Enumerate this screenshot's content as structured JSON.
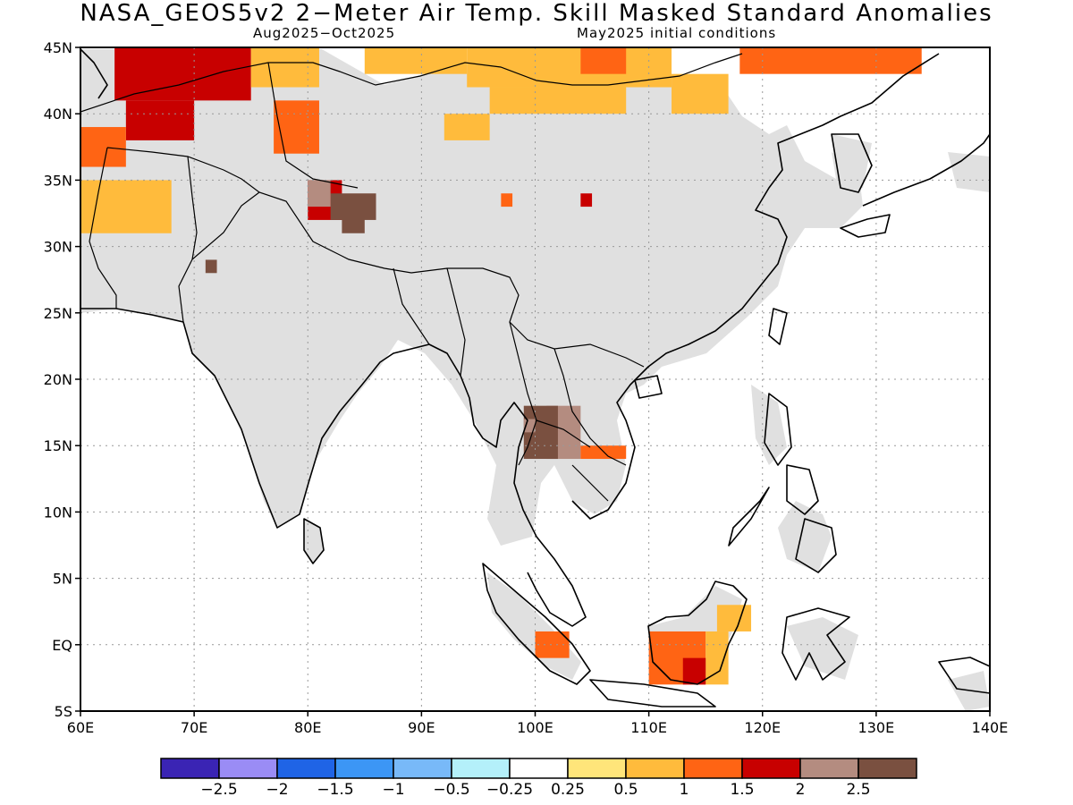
{
  "header": {
    "title": "NASA_GEOS5v2 2−Meter Air Temp. Skill Masked Standard Anomalies",
    "period": "Aug2025−Oct2025",
    "initial": "May2025 initial conditions"
  },
  "axes": {
    "lat_labels": [
      "45N",
      "40N",
      "35N",
      "30N",
      "25N",
      "20N",
      "15N",
      "10N",
      "5N",
      "EQ",
      "5S"
    ],
    "lon_labels": [
      "60E",
      "70E",
      "80E",
      "90E",
      "100E",
      "110E",
      "120E",
      "130E",
      "140E"
    ]
  },
  "colorbar": {
    "colors": [
      "#3a24b4",
      "#9a8cf5",
      "#1f64e6",
      "#3c96f5",
      "#78b9f8",
      "#b4f0fa",
      "#ffffff",
      "#ffe57a",
      "#ffbb3c",
      "#ff6414",
      "#c80000",
      "#b48c80",
      "#7a5040"
    ],
    "labels": [
      "−2.5",
      "−2",
      "−1.5",
      "−1",
      "−0.5",
      "−0.25",
      "0.25",
      "0.5",
      "1",
      "1.5",
      "2",
      "2.5"
    ]
  },
  "map": {
    "lon_range": [
      60,
      140
    ],
    "lat_range": [
      -5,
      45
    ],
    "masked_color": "#e0e0e0",
    "anomaly_regions": [
      {
        "lon": [
          63,
          75
        ],
        "lat": [
          41,
          45
        ],
        "value": 1.5
      },
      {
        "lon": [
          64,
          70
        ],
        "lat": [
          38,
          41
        ],
        "value": 1.5
      },
      {
        "lon": [
          60,
          64
        ],
        "lat": [
          36,
          39
        ],
        "value": 1.0
      },
      {
        "lon": [
          60,
          68
        ],
        "lat": [
          31,
          35
        ],
        "value": 0.5
      },
      {
        "lon": [
          75,
          81
        ],
        "lat": [
          42,
          45
        ],
        "value": 0.5
      },
      {
        "lon": [
          77,
          81
        ],
        "lat": [
          37,
          41
        ],
        "value": 1.0
      },
      {
        "lon": [
          85,
          94
        ],
        "lat": [
          43,
          45
        ],
        "value": 0.5
      },
      {
        "lon": [
          94,
          112
        ],
        "lat": [
          42,
          45
        ],
        "value": 0.5
      },
      {
        "lon": [
          96,
          108
        ],
        "lat": [
          40,
          42
        ],
        "value": 0.5
      },
      {
        "lon": [
          92,
          96
        ],
        "lat": [
          38,
          40
        ],
        "value": 0.5
      },
      {
        "lon": [
          104,
          108
        ],
        "lat": [
          43,
          45
        ],
        "value": 1.0
      },
      {
        "lon": [
          118,
          134
        ],
        "lat": [
          43,
          45
        ],
        "value": 1.0
      },
      {
        "lon": [
          112,
          117
        ],
        "lat": [
          40,
          43
        ],
        "value": 0.5
      },
      {
        "lon": [
          80,
          83
        ],
        "lat": [
          32,
          35
        ],
        "value": 1.5
      },
      {
        "lon": [
          82,
          86
        ],
        "lat": [
          32,
          34
        ],
        "value": 2.5
      },
      {
        "lon": [
          83,
          85
        ],
        "lat": [
          31,
          33
        ],
        "value": 2.5
      },
      {
        "lon": [
          80,
          82
        ],
        "lat": [
          33,
          35
        ],
        "value": 2.0
      },
      {
        "lon": [
          101,
          104
        ],
        "lat": [
          14,
          18
        ],
        "value": 2.0
      },
      {
        "lon": [
          99,
          102
        ],
        "lat": [
          14,
          18
        ],
        "value": 2.5
      },
      {
        "lon": [
          104,
          108
        ],
        "lat": [
          14,
          15
        ],
        "value": 1.0
      },
      {
        "lon": [
          100,
          103
        ],
        "lat": [
          -1,
          1
        ],
        "value": 1.0
      },
      {
        "lon": [
          110,
          115
        ],
        "lat": [
          -3,
          1
        ],
        "value": 1.0
      },
      {
        "lon": [
          115,
          117
        ],
        "lat": [
          -3,
          1
        ],
        "value": 0.5
      },
      {
        "lon": [
          113,
          115
        ],
        "lat": [
          -3,
          -1
        ],
        "value": 1.5
      },
      {
        "lon": [
          116,
          119
        ],
        "lat": [
          1,
          3
        ],
        "value": 0.5
      },
      {
        "lon": [
          99,
          100
        ],
        "lat": [
          16,
          17
        ],
        "value": 2.0
      },
      {
        "lon": [
          104,
          105
        ],
        "lat": [
          33,
          34
        ],
        "value": 1.5
      },
      {
        "lon": [
          97,
          98
        ],
        "lat": [
          33,
          34
        ],
        "value": 1.0
      },
      {
        "lon": [
          71,
          72
        ],
        "lat": [
          28,
          29
        ],
        "value": 2.5
      }
    ]
  }
}
